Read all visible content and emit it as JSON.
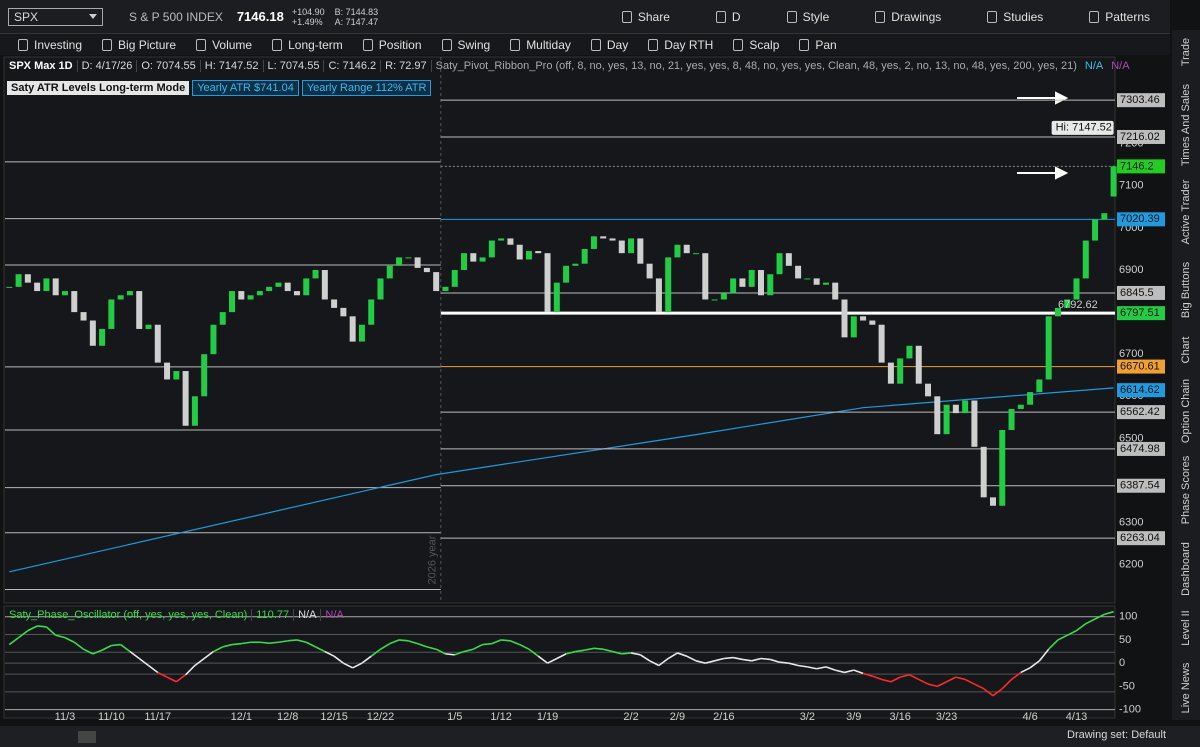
{
  "toolbar": {
    "symbol": "SPX",
    "name": "S & P 500 INDEX",
    "last": "7146.18",
    "change": "+104.90",
    "change_pct": "+1.49%",
    "bid": "B: 7144.83",
    "ask": "A: 7147.47",
    "actions": [
      "Share",
      "D",
      "Style",
      "Drawings",
      "Studies",
      "Patterns"
    ]
  },
  "styles": [
    "Investing",
    "Big Picture",
    "Volume",
    "Long-term",
    "Position",
    "Swing",
    "Multiday",
    "Day",
    "Day RTH",
    "Scalp",
    "Pan"
  ],
  "side_tabs": [
    "Trade",
    "Times And Sales",
    "Active Trader",
    "Big Buttons",
    "Chart",
    "Option Chain",
    "Phase Scores",
    "Dashboard",
    "Level II",
    "Live News"
  ],
  "footer": "Drawing set: Default",
  "chart_data": {
    "type": "candlestick",
    "info": [
      "SPX Max 1D",
      "D: 4/17/26"
    ],
    "ohlc": [
      {
        "key": "O:",
        "value": 7074.55
      },
      {
        "key": "H:",
        "value": 7147.52
      },
      {
        "key": "L:",
        "value": 7074.55
      },
      {
        "key": "C:",
        "value": 7146.2
      },
      {
        "key": "R:",
        "value": 72.97
      }
    ],
    "study": "Saty_Pivot_Ribbon_Pro (off, 8, no, yes, 13, no, 21, yes, yes, 8, 48, no, yes, yes, Clean, 48, yes, 2, no, 13, no, 48, yes, 200, yes, 21)",
    "study_na": [
      "N/A",
      "N/A"
    ],
    "atr_labels": [
      "Saty ATR Levels Long-term Mode",
      "Yearly ATR $741.04",
      "Yearly Range 112% ATR"
    ],
    "hi_label": "Hi: 7147.52",
    "annotation": {
      "text": "6792.62",
      "value": 6792.62
    },
    "year_label": "2026 year",
    "weeks": [
      {
        "label": null,
        "days": 6
      },
      {
        "label": "11/3",
        "days": 5
      },
      {
        "label": "11/10",
        "days": 5
      },
      {
        "label": "11/17",
        "days": 5
      },
      {
        "label": null,
        "days": 4
      },
      {
        "label": "12/1",
        "days": 5
      },
      {
        "label": "12/8",
        "days": 5
      },
      {
        "label": "12/15",
        "days": 5
      },
      {
        "label": "12/22",
        "days": 4
      },
      {
        "label": null,
        "days": 4
      },
      {
        "label": "1/5",
        "days": 5
      },
      {
        "label": "1/12",
        "days": 5
      },
      {
        "label": "1/19",
        "days": 4
      },
      {
        "label": null,
        "days": 5
      },
      {
        "label": "2/2",
        "days": 5
      },
      {
        "label": "2/9",
        "days": 5
      },
      {
        "label": "2/16",
        "days": 4
      },
      {
        "label": null,
        "days": 5
      },
      {
        "label": "3/2",
        "days": 5
      },
      {
        "label": "3/9",
        "days": 5
      },
      {
        "label": "3/16",
        "days": 5
      },
      {
        "label": "3/23",
        "days": 5
      },
      {
        "label": null,
        "days": 4
      },
      {
        "label": "4/6",
        "days": 5
      },
      {
        "label": "4/13",
        "days": 5
      }
    ],
    "closes": [
      6860,
      6890,
      6870,
      6850,
      6880,
      6840,
      6850,
      6800,
      6780,
      6720,
      6760,
      6830,
      6840,
      6850,
      6760,
      6770,
      6680,
      6640,
      6660,
      6530,
      6600,
      6700,
      6770,
      6800,
      6850,
      6830,
      6840,
      6850,
      6860,
      6870,
      6850,
      6840,
      6880,
      6900,
      6830,
      6810,
      6790,
      6730,
      6770,
      6830,
      6880,
      6910,
      6930,
      6930,
      6905,
      6895,
      6850,
      6860,
      6900,
      6940,
      6920,
      6930,
      6970,
      6975,
      6960,
      6925,
      6945,
      6940,
      6800,
      6870,
      6910,
      6915,
      6950,
      6980,
      6975,
      6970,
      6940,
      6975,
      6915,
      6880,
      6800,
      6930,
      6960,
      6940,
      6940,
      6830,
      6830,
      6845,
      6880,
      6860,
      6900,
      6840,
      6890,
      6940,
      6910,
      6880,
      6880,
      6865,
      6870,
      6830,
      6740,
      6790,
      6780,
      6770,
      6680,
      6630,
      6690,
      6720,
      6630,
      6600,
      6510,
      6580,
      6560,
      6590,
      6480,
      6360,
      6340,
      6520,
      6570,
      6580,
      6610,
      6640,
      6790,
      6810,
      6830,
      6880,
      6970,
      7020,
      7035,
      7146.2
    ],
    "colors": {
      "up": "#22cc44",
      "down": "#cfcfcf"
    },
    "sma": {
      "color": "#1e9be0",
      "index": [
        0,
        46,
        74,
        92,
        119
      ],
      "values": [
        6183,
        6414,
        6509,
        6573,
        6620
      ],
      "label": 6614.62
    },
    "last_price": {
      "value": 7146.2,
      "color": "#22cc22"
    },
    "levels": [
      {
        "value": 7303.46,
        "color": "#bdbdbd"
      },
      {
        "value": 7216.02,
        "color": "#bdbdbd"
      },
      {
        "value": 7020.39,
        "color": "#1e9be0"
      },
      {
        "value": 6845.5,
        "color": "#bdbdbd"
      },
      {
        "value": 6797.51,
        "color": "#22cc44",
        "line": "#ffffff"
      },
      {
        "value": 6670.61,
        "color": "#f0a030"
      },
      {
        "value": 6562.42,
        "color": "#bdbdbd"
      },
      {
        "value": 6474.98,
        "color": "#bdbdbd"
      },
      {
        "value": 6387.54,
        "color": "#bdbdbd"
      },
      {
        "value": 6263.04,
        "color": "#bdbdbd"
      }
    ],
    "prior_levels": [
      7157,
      7022,
      6912,
      6670,
      6520,
      6383,
      6276,
      6141
    ],
    "ylim": [
      6109,
      7406
    ],
    "yticks": [
      7200,
      7100,
      7000,
      6900,
      6700,
      6600,
      6500,
      6300,
      6200
    ],
    "oscillator": {
      "title": "Saty_Phase_Oscillator (off, yes, yes, yes, Clean)",
      "na": [
        "N/A",
        "N/A"
      ],
      "ylim": [
        -118,
        123
      ],
      "yticks": [
        100,
        50,
        0,
        -50,
        -100
      ],
      "levels": [
        100,
        61.8,
        23.6,
        0,
        -23.6,
        -61.8,
        -100
      ],
      "values": [
        40,
        55,
        70,
        80,
        78,
        60,
        55,
        45,
        30,
        20,
        28,
        38,
        40,
        25,
        10,
        -5,
        -20,
        -30,
        -40,
        -25,
        -5,
        10,
        25,
        35,
        40,
        42,
        45,
        45,
        43,
        45,
        48,
        50,
        45,
        35,
        25,
        15,
        0,
        -10,
        0,
        15,
        30,
        42,
        50,
        48,
        42,
        35,
        30,
        20,
        18,
        25,
        30,
        40,
        42,
        50,
        48,
        40,
        30,
        15,
        0,
        10,
        20,
        25,
        28,
        32,
        30,
        25,
        20,
        22,
        18,
        5,
        -5,
        10,
        22,
        15,
        5,
        0,
        5,
        10,
        12,
        8,
        5,
        10,
        8,
        2,
        0,
        -5,
        -8,
        -12,
        -8,
        -15,
        -20,
        -15,
        -22,
        -28,
        -35,
        -40,
        -30,
        -25,
        -35,
        -45,
        -50,
        -40,
        -30,
        -35,
        -45,
        -55,
        -70,
        -55,
        -35,
        -20,
        -10,
        5,
        30,
        50,
        60,
        70,
        85,
        95,
        105,
        110.77
      ]
    }
  }
}
